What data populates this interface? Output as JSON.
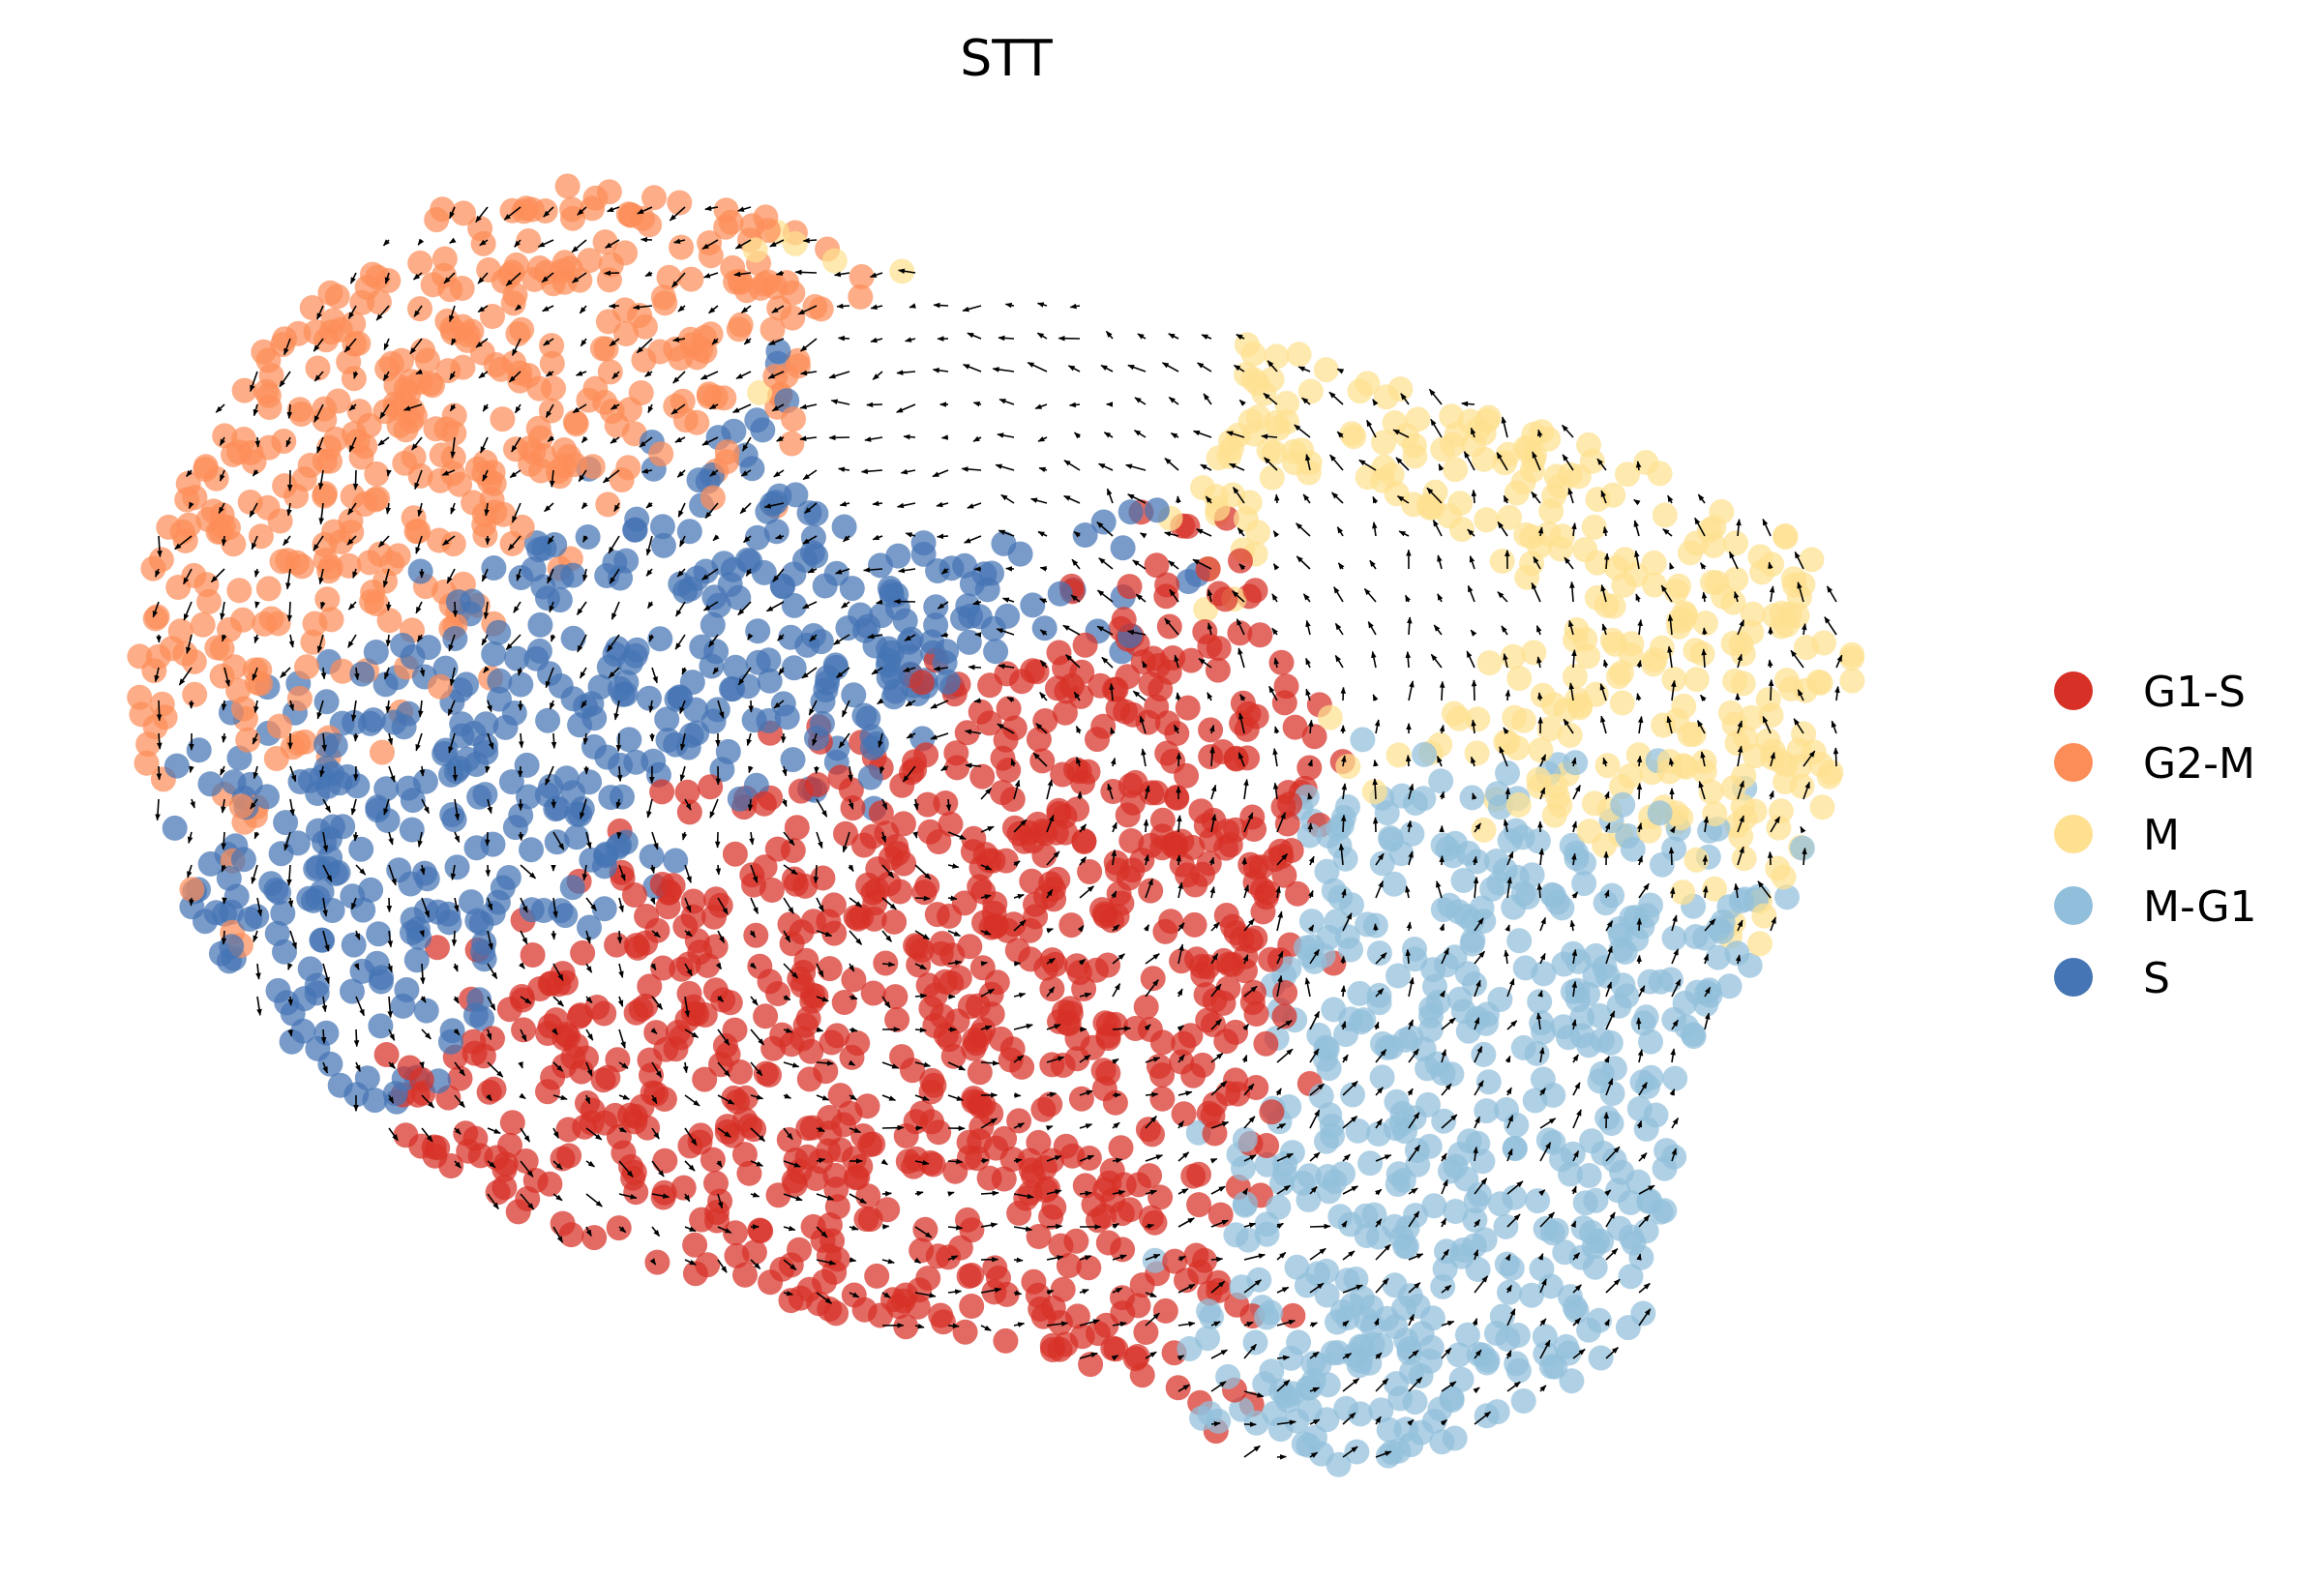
{
  "chart_data": {
    "type": "scatter",
    "title": "STT",
    "xlabel": "",
    "ylabel": "",
    "axes": "off",
    "grid": false,
    "legend_position": "right",
    "embedding": "2D cell embedding with velocity stream arrows",
    "categories": [
      "G1-S",
      "G2-M",
      "M",
      "M-G1",
      "S"
    ],
    "series": [
      {
        "name": "G1-S",
        "color": "#d73027",
        "region": "center and lower-center band of the embedding"
      },
      {
        "name": "G2-M",
        "color": "#fc8d59",
        "region": "upper-left arc of the embedding"
      },
      {
        "name": "M",
        "color": "#fee090",
        "region": "top arc and right lobe of the embedding"
      },
      {
        "name": "M-G1",
        "color": "#91bfdb",
        "region": "lower-right lobe of the embedding"
      },
      {
        "name": "S",
        "color": "#4575b4",
        "region": "left-center of the embedding"
      }
    ]
  }
}
